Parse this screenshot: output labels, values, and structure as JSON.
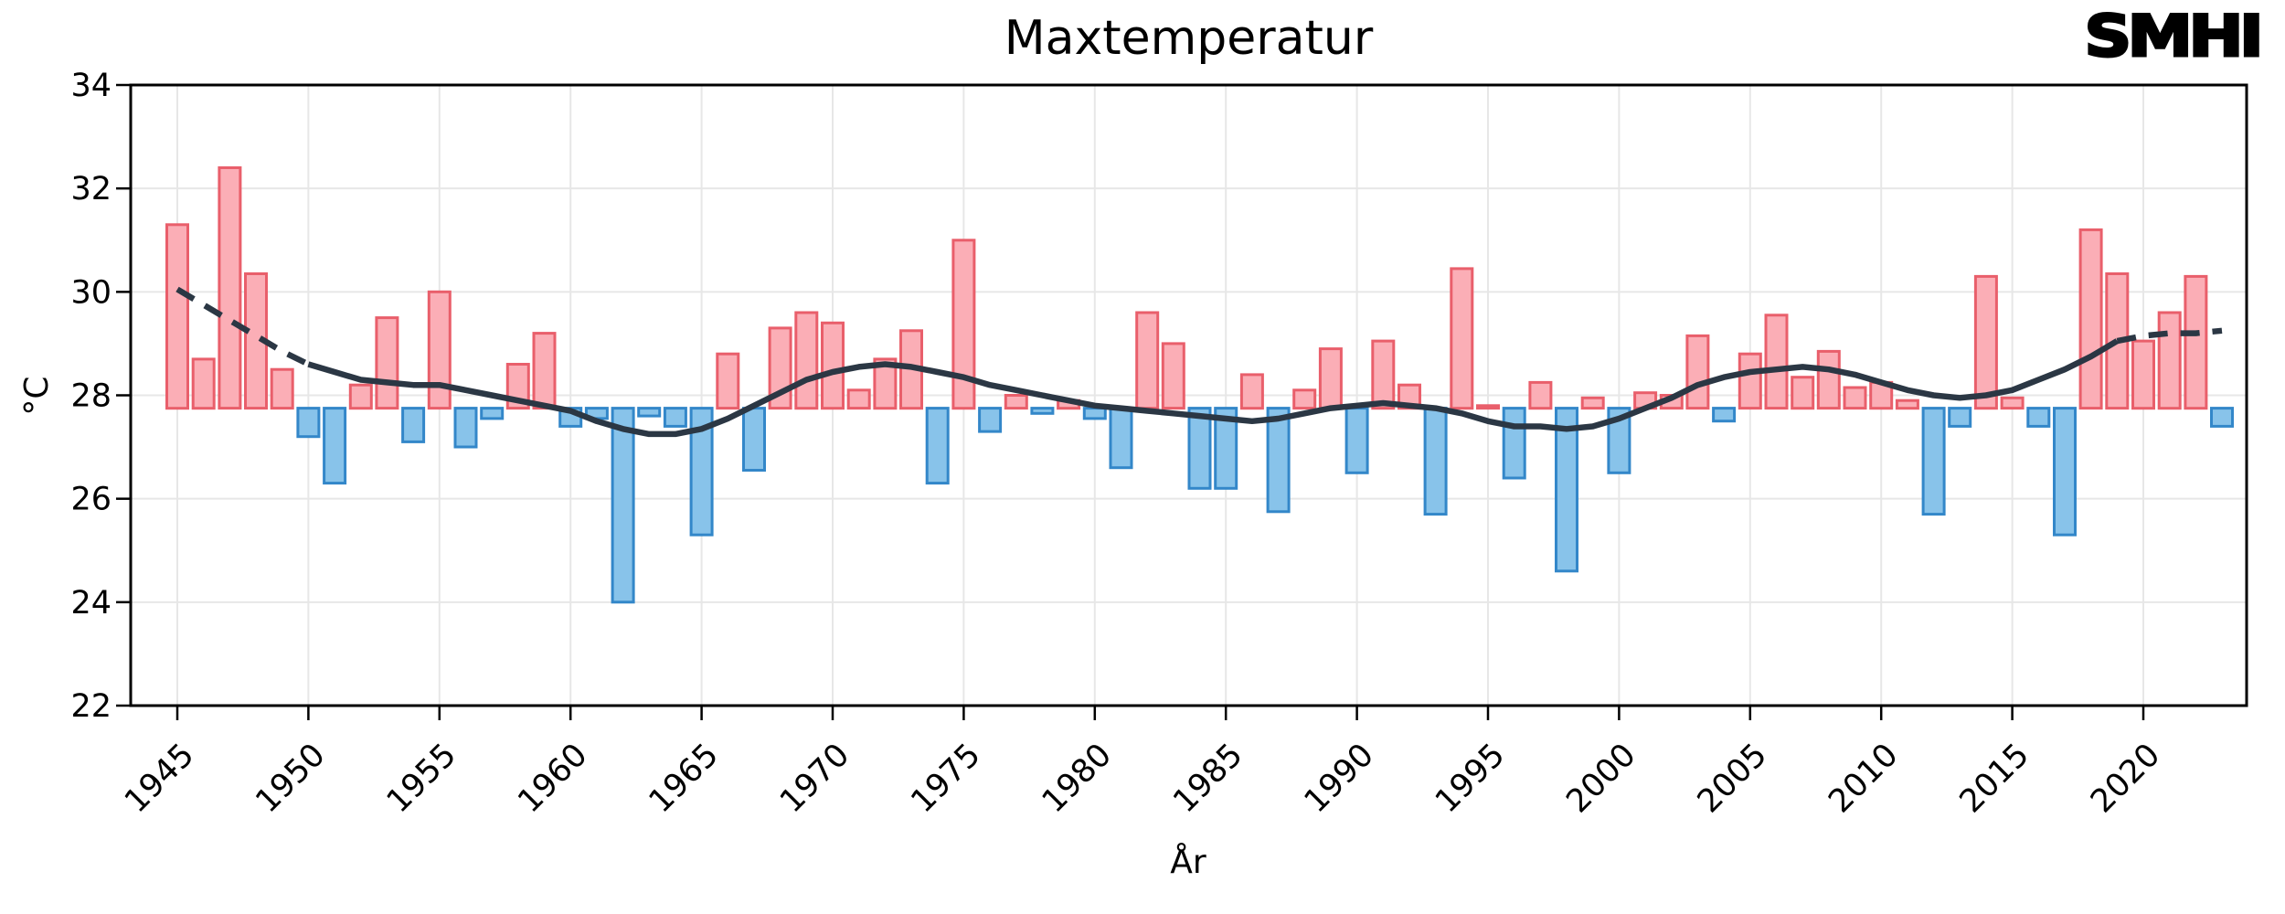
{
  "page": {
    "logo_text": "SMHI",
    "background": "#ffffff"
  },
  "colors": {
    "bar_above_fill": "#fbaeb6",
    "bar_above_edge": "#e95f6b",
    "bar_below_fill": "#88c3ea",
    "bar_below_edge": "#3387c9",
    "trend": "#2b3744",
    "grid": "#e7e7e7",
    "axis": "#000000",
    "text": "#000000"
  },
  "chart_data": {
    "type": "bar",
    "title": "Maxtemperatur",
    "xlabel": "År",
    "ylabel": "°C",
    "ylim": [
      22,
      34
    ],
    "y_ticks": [
      22,
      24,
      26,
      28,
      30,
      32,
      34
    ],
    "x_ticks": [
      1945,
      1950,
      1955,
      1960,
      1965,
      1970,
      1975,
      1980,
      1985,
      1990,
      1995,
      2000,
      2005,
      2010,
      2015,
      2020
    ],
    "grid": true,
    "legend": "none",
    "baseline": 27.75,
    "years": [
      1945,
      1946,
      1947,
      1948,
      1949,
      1950,
      1951,
      1952,
      1953,
      1954,
      1955,
      1956,
      1957,
      1958,
      1959,
      1960,
      1961,
      1962,
      1963,
      1964,
      1965,
      1966,
      1967,
      1968,
      1969,
      1970,
      1971,
      1972,
      1973,
      1974,
      1975,
      1976,
      1977,
      1978,
      1979,
      1980,
      1981,
      1982,
      1983,
      1984,
      1985,
      1986,
      1987,
      1988,
      1989,
      1990,
      1991,
      1992,
      1993,
      1994,
      1995,
      1996,
      1997,
      1998,
      1999,
      2000,
      2001,
      2002,
      2003,
      2004,
      2005,
      2006,
      2007,
      2008,
      2009,
      2010,
      2011,
      2012,
      2013,
      2014,
      2015,
      2016,
      2017,
      2018,
      2019,
      2020,
      2021,
      2022,
      2023
    ],
    "values": [
      31.3,
      28.7,
      32.4,
      30.35,
      28.5,
      27.2,
      26.3,
      28.2,
      29.5,
      27.1,
      30.0,
      27.0,
      27.55,
      28.6,
      29.2,
      27.4,
      27.55,
      24.0,
      27.6,
      27.4,
      25.3,
      28.8,
      26.55,
      29.3,
      29.6,
      29.4,
      28.1,
      28.7,
      29.25,
      26.3,
      31.0,
      27.3,
      28.0,
      27.65,
      27.9,
      27.55,
      26.6,
      29.6,
      29.0,
      26.2,
      26.2,
      28.4,
      25.75,
      28.1,
      28.9,
      26.5,
      29.05,
      28.2,
      25.7,
      30.45,
      27.8,
      26.4,
      28.25,
      24.6,
      27.95,
      26.5,
      28.05,
      28.0,
      29.15,
      27.5,
      28.8,
      29.55,
      28.35,
      28.85,
      28.15,
      28.25,
      27.9,
      25.7,
      27.4,
      30.3,
      27.95,
      27.4,
      25.3,
      31.2,
      30.35,
      29.05,
      29.6,
      30.3,
      27.4
    ],
    "trend": {
      "solid_from": 1950,
      "solid_to": 2019,
      "values": [
        30.05,
        29.75,
        29.45,
        29.15,
        28.85,
        28.6,
        28.45,
        28.3,
        28.25,
        28.2,
        28.2,
        28.1,
        28.0,
        27.9,
        27.8,
        27.7,
        27.5,
        27.35,
        27.25,
        27.25,
        27.35,
        27.55,
        27.8,
        28.05,
        28.3,
        28.45,
        28.55,
        28.6,
        28.55,
        28.45,
        28.35,
        28.2,
        28.1,
        28.0,
        27.9,
        27.8,
        27.75,
        27.7,
        27.65,
        27.6,
        27.55,
        27.5,
        27.55,
        27.65,
        27.75,
        27.8,
        27.85,
        27.8,
        27.75,
        27.65,
        27.5,
        27.4,
        27.4,
        27.35,
        27.4,
        27.55,
        27.75,
        27.95,
        28.2,
        28.35,
        28.45,
        28.5,
        28.55,
        28.5,
        28.4,
        28.25,
        28.1,
        28.0,
        27.95,
        28.0,
        28.1,
        28.3,
        28.5,
        28.75,
        29.05,
        29.15,
        29.2,
        29.2,
        29.25
      ]
    }
  }
}
